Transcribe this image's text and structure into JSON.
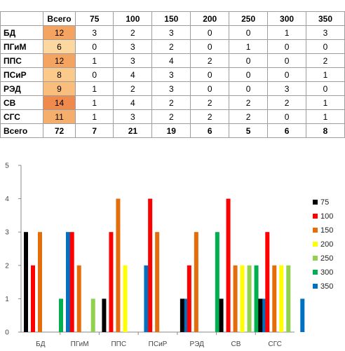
{
  "table": {
    "corner": "",
    "header": [
      "Всего",
      "75",
      "100",
      "150",
      "200",
      "250",
      "300",
      "350"
    ],
    "rows": [
      {
        "name": "БД",
        "total": "12",
        "values": [
          "3",
          "2",
          "3",
          "0",
          "0",
          "1",
          "3"
        ],
        "color": "#f4a460"
      },
      {
        "name": "ПГиМ",
        "total": "6",
        "values": [
          "0",
          "3",
          "2",
          "0",
          "1",
          "0",
          "0"
        ],
        "color": "#fcd7a0"
      },
      {
        "name": "ППС",
        "total": "12",
        "values": [
          "1",
          "3",
          "4",
          "2",
          "0",
          "0",
          "2"
        ],
        "color": "#f4a460"
      },
      {
        "name": "ПСиР",
        "total": "8",
        "values": [
          "0",
          "4",
          "3",
          "0",
          "0",
          "0",
          "1"
        ],
        "color": "#fbc98a"
      },
      {
        "name": "РЭД",
        "total": "9",
        "values": [
          "1",
          "2",
          "3",
          "0",
          "0",
          "3",
          "0"
        ],
        "color": "#f9be7c"
      },
      {
        "name": "СВ",
        "total": "14",
        "values": [
          "1",
          "4",
          "2",
          "2",
          "2",
          "2",
          "1"
        ],
        "color": "#f08a4c"
      },
      {
        "name": "СГС",
        "total": "11",
        "values": [
          "1",
          "3",
          "2",
          "2",
          "2",
          "0",
          "1"
        ],
        "color": "#f6ae6c"
      }
    ],
    "totals": {
      "name": "Всего",
      "values": [
        "72",
        "7",
        "21",
        "19",
        "6",
        "5",
        "6",
        "8"
      ]
    }
  },
  "chart_data": {
    "type": "bar",
    "categories": [
      "БД",
      "ПГиМ",
      "ППС",
      "ПСиР",
      "РЭД",
      "СВ",
      "СГС"
    ],
    "series": [
      {
        "name": "75",
        "color": "#000000",
        "values": [
          3,
          0,
          1,
          0,
          1,
          1,
          1
        ]
      },
      {
        "name": "100",
        "color": "#ff0000",
        "values": [
          2,
          3,
          3,
          4,
          2,
          4,
          3
        ]
      },
      {
        "name": "150",
        "color": "#e46c0a",
        "values": [
          3,
          2,
          4,
          3,
          3,
          2,
          2
        ]
      },
      {
        "name": "200",
        "color": "#ffff00",
        "values": [
          0,
          0,
          2,
          0,
          0,
          2,
          2
        ]
      },
      {
        "name": "250",
        "color": "#92d050",
        "values": [
          0,
          1,
          0,
          0,
          0,
          2,
          2
        ]
      },
      {
        "name": "300",
        "color": "#00b050",
        "values": [
          1,
          0,
          0,
          0,
          3,
          2,
          0
        ]
      },
      {
        "name": "350",
        "color": "#0070c0",
        "values": [
          3,
          0,
          2,
          1,
          0,
          1,
          1
        ]
      }
    ],
    "ylim": [
      0,
      5
    ],
    "yticks": [
      "0",
      "1",
      "2",
      "3",
      "4",
      "5"
    ],
    "grid": false,
    "legend": "right"
  }
}
